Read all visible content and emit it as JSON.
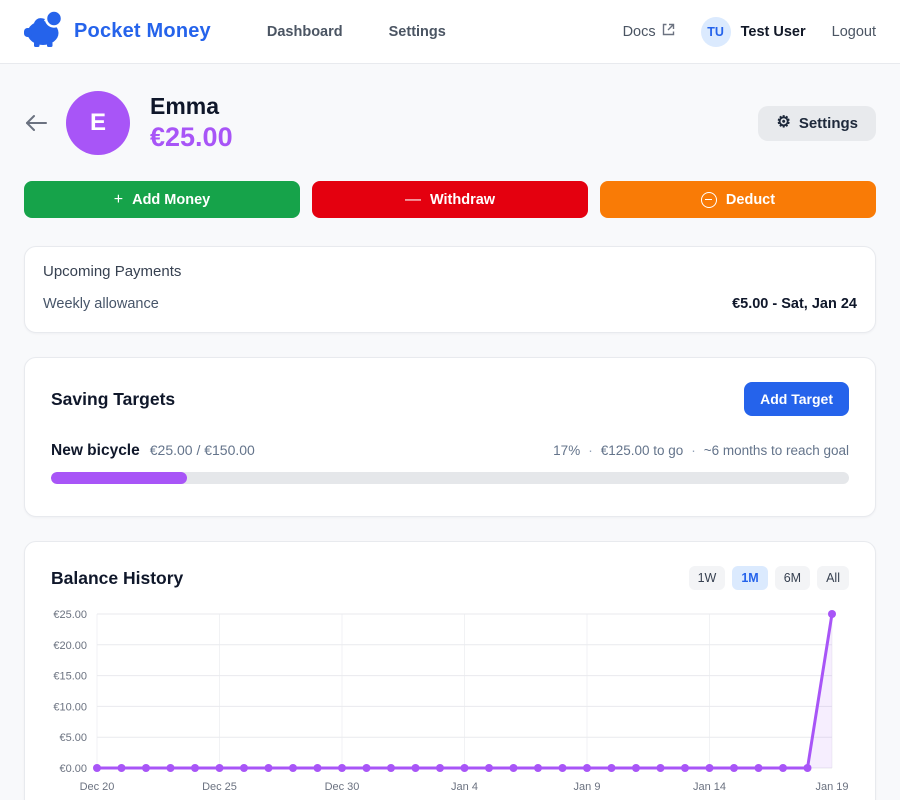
{
  "brand": {
    "name": "Pocket Money",
    "accent_color": "#2563eb"
  },
  "nav": {
    "links": [
      {
        "label": "Dashboard"
      },
      {
        "label": "Settings"
      }
    ],
    "docs_label": "Docs",
    "user_initials": "TU",
    "user_name": "Test User",
    "logout_label": "Logout"
  },
  "profile": {
    "initial": "E",
    "name": "Emma",
    "balance": "€25.00",
    "accent_color": "#a855f7",
    "settings_label": "Settings"
  },
  "actions": [
    {
      "label": "Add Money",
      "color": "#16a34a",
      "icon": "plus"
    },
    {
      "label": "Withdraw",
      "color": "#e4000f",
      "icon": "minus"
    },
    {
      "label": "Deduct",
      "color": "#f97b06",
      "icon": "circle-minus"
    }
  ],
  "upcoming": {
    "title": "Upcoming Payments",
    "rows": [
      {
        "name": "Weekly allowance",
        "detail": "€5.00 - Sat, Jan 24"
      }
    ]
  },
  "saving_targets": {
    "title": "Saving Targets",
    "add_button_label": "Add Target",
    "add_button_color": "#2563eb",
    "targets": [
      {
        "name": "New bicycle",
        "amounts": "€25.00 / €150.00",
        "percent": 17,
        "percent_label": "17%",
        "to_go": "€125.00 to go",
        "eta": "~6 months to reach goal",
        "bar_color": "#a855f7"
      }
    ]
  },
  "balance_history": {
    "title": "Balance History",
    "ranges": [
      "1W",
      "1M",
      "6M",
      "All"
    ],
    "selected_range": "1M"
  },
  "chart_data": {
    "type": "line",
    "title": "Balance History",
    "series": [
      {
        "name": "Balance",
        "values": [
          0,
          0,
          0,
          0,
          0,
          0,
          0,
          0,
          0,
          0,
          0,
          0,
          0,
          0,
          0,
          0,
          0,
          0,
          0,
          0,
          0,
          0,
          0,
          0,
          0,
          0,
          0,
          0,
          0,
          0,
          25
        ]
      }
    ],
    "x_tick_labels": [
      "Dec 20",
      "Dec 25",
      "Dec 30",
      "Jan 4",
      "Jan 9",
      "Jan 14",
      "Jan 19"
    ],
    "x_tick_indices": [
      0,
      5,
      10,
      15,
      20,
      25,
      30
    ],
    "y_ticks": [
      0,
      5,
      10,
      15,
      20,
      25
    ],
    "y_tick_labels": [
      "€0.00",
      "€5.00",
      "€10.00",
      "€15.00",
      "€20.00",
      "€25.00"
    ],
    "ylim": [
      0,
      25
    ],
    "grid": true,
    "legend_position": "none",
    "line_color": "#a855f7",
    "point_color": "#a855f7",
    "area_fill": "rgba(168,85,247,0.10)",
    "grid_color": "#e9eaee",
    "vgrid_color": "#f1f2f4",
    "tick_text_color": "#6b7280"
  }
}
